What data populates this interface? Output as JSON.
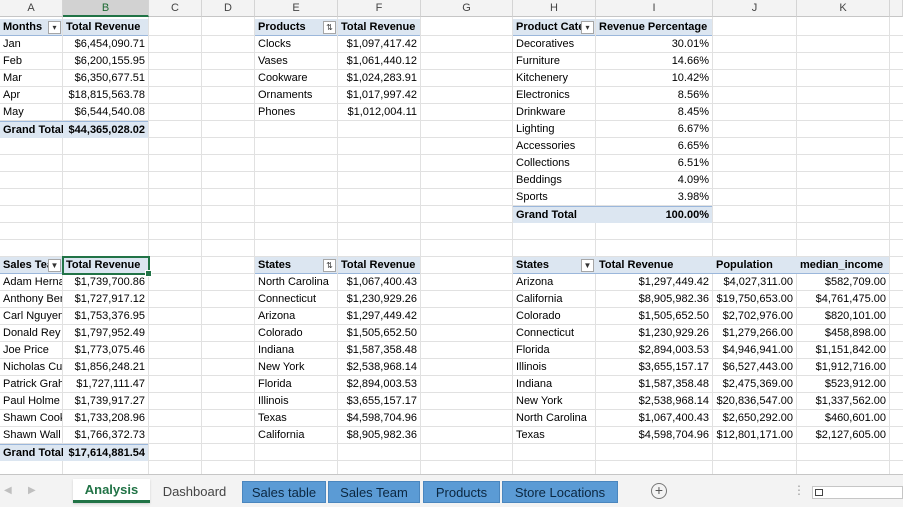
{
  "columns": [
    "A",
    "B",
    "C",
    "D",
    "E",
    "F",
    "G",
    "H",
    "I",
    "J",
    "K"
  ],
  "pivot_months": {
    "header": [
      "Months",
      "Total Revenue"
    ],
    "rows": [
      [
        "Jan",
        "$6,454,090.71"
      ],
      [
        "Feb",
        "$6,200,155.95"
      ],
      [
        "Mar",
        "$6,350,677.51"
      ],
      [
        "Apr",
        "$18,815,563.78"
      ],
      [
        "May",
        "$6,544,540.08"
      ]
    ],
    "total": [
      "Grand Total",
      "$44,365,028.02"
    ]
  },
  "pivot_products": {
    "header": [
      "Products",
      "Total Revenue"
    ],
    "rows": [
      [
        "Clocks",
        "$1,097,417.42"
      ],
      [
        "Vases",
        "$1,061,440.12"
      ],
      [
        "Cookware",
        "$1,024,283.91"
      ],
      [
        "Ornaments",
        "$1,017,997.42"
      ],
      [
        "Phones",
        "$1,012,004.11"
      ]
    ]
  },
  "pivot_category": {
    "header": [
      "Product Cate",
      "Revenue Percentage"
    ],
    "rows": [
      [
        "Decoratives",
        "30.01%"
      ],
      [
        "Furniture",
        "14.66%"
      ],
      [
        "Kitchenery",
        "10.42%"
      ],
      [
        "Electronics",
        "8.56%"
      ],
      [
        "Drinkware",
        "8.45%"
      ],
      [
        "Lighting",
        "6.67%"
      ],
      [
        "Accessories",
        "6.65%"
      ],
      [
        "Collections",
        "6.51%"
      ],
      [
        "Beddings",
        "4.09%"
      ],
      [
        "Sports",
        "3.98%"
      ]
    ],
    "total": [
      "Grand Total",
      "100.00%"
    ]
  },
  "pivot_sales_team": {
    "header": [
      "Sales Tea",
      "Total Revenue"
    ],
    "rows": [
      [
        "Adam Herna",
        "$1,739,700.86"
      ],
      [
        "Anthony Ber",
        "$1,727,917.12"
      ],
      [
        "Carl Nguyen",
        "$1,753,376.95"
      ],
      [
        "Donald Rey",
        "$1,797,952.49"
      ],
      [
        "Joe Price",
        "$1,773,075.46"
      ],
      [
        "Nicholas Cu",
        "$1,856,248.21"
      ],
      [
        "Patrick Grah",
        "$1,727,111.47"
      ],
      [
        "Paul Holme",
        "$1,739,917.27"
      ],
      [
        "Shawn Cook",
        "$1,733,208.96"
      ],
      [
        "Shawn Wall",
        "$1,766,372.73"
      ]
    ],
    "total": [
      "Grand Total",
      "$17,614,881.54"
    ]
  },
  "pivot_states": {
    "header": [
      "States",
      "Total Revenue"
    ],
    "rows": [
      [
        "North Carolina",
        "$1,067,400.43"
      ],
      [
        "Connecticut",
        "$1,230,929.26"
      ],
      [
        "Arizona",
        "$1,297,449.42"
      ],
      [
        "Colorado",
        "$1,505,652.50"
      ],
      [
        "Indiana",
        "$1,587,358.48"
      ],
      [
        "New York",
        "$2,538,968.14"
      ],
      [
        "Florida",
        "$2,894,003.53"
      ],
      [
        "Illinois",
        "$3,655,157.17"
      ],
      [
        "Texas",
        "$4,598,704.96"
      ],
      [
        "California",
        "$8,905,982.36"
      ]
    ]
  },
  "table_states": {
    "header": [
      "States",
      "Total Revenue",
      "Population",
      "median_income"
    ],
    "rows": [
      [
        "Arizona",
        "$1,297,449.42",
        "$4,027,311.00",
        "$582,709.00"
      ],
      [
        "California",
        "$8,905,982.36",
        "$19,750,653.00",
        "$4,761,475.00"
      ],
      [
        "Colorado",
        "$1,505,652.50",
        "$2,702,976.00",
        "$820,101.00"
      ],
      [
        "Connecticut",
        "$1,230,929.26",
        "$1,279,266.00",
        "$458,898.00"
      ],
      [
        "Florida",
        "$2,894,003.53",
        "$4,946,941.00",
        "$1,151,842.00"
      ],
      [
        "Illinois",
        "$3,655,157.17",
        "$6,527,443.00",
        "$1,912,716.00"
      ],
      [
        "Indiana",
        "$1,587,358.48",
        "$2,475,369.00",
        "$523,912.00"
      ],
      [
        "New York",
        "$2,538,968.14",
        "$20,836,547.00",
        "$1,337,562.00"
      ],
      [
        "North Carolina",
        "$1,067,400.43",
        "$2,650,292.00",
        "$460,601.00"
      ],
      [
        "Texas",
        "$4,598,704.96",
        "$12,801,171.00",
        "$2,127,605.00"
      ]
    ]
  },
  "tabs": [
    "Analysis",
    "Dashboard",
    "Sales table",
    "Sales Team",
    "Products",
    "Store Locations"
  ],
  "active_tab": "Analysis",
  "colors": {
    "accent": "#217346",
    "pivot_header": "#dce6f1",
    "tab_blue": "#5b9bd5"
  }
}
